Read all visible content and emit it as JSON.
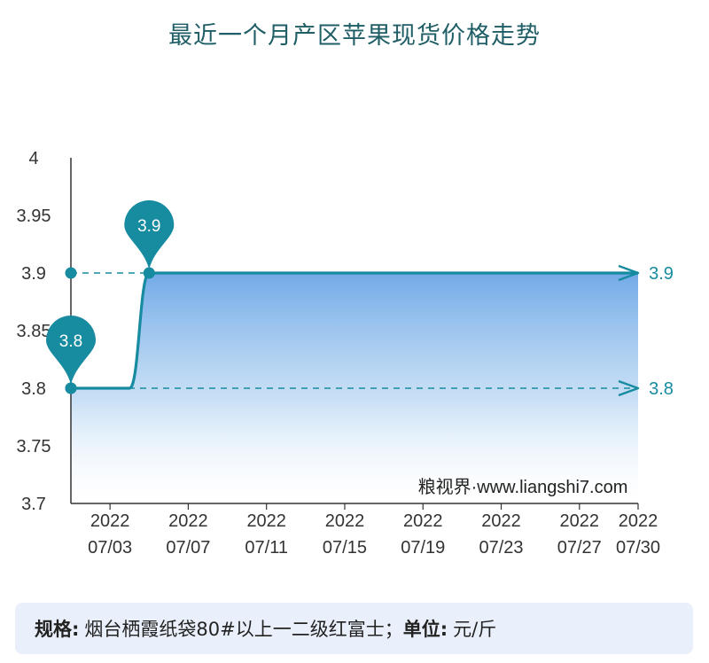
{
  "chart_data": {
    "type": "line",
    "title": "最近一个月产区苹果现货价格走势",
    "x": [
      "2022-07-01",
      "2022-07-02",
      "2022-07-03",
      "2022-07-04",
      "2022-07-05",
      "2022-07-06",
      "2022-07-07",
      "2022-07-08",
      "2022-07-09",
      "2022-07-10",
      "2022-07-11",
      "2022-07-12",
      "2022-07-13",
      "2022-07-14",
      "2022-07-15",
      "2022-07-16",
      "2022-07-17",
      "2022-07-18",
      "2022-07-19",
      "2022-07-20",
      "2022-07-21",
      "2022-07-22",
      "2022-07-23",
      "2022-07-24",
      "2022-07-25",
      "2022-07-26",
      "2022-07-27",
      "2022-07-28",
      "2022-07-29",
      "2022-07-30"
    ],
    "series": [
      {
        "values": [
          3.8,
          3.8,
          3.8,
          3.8,
          3.9,
          3.9,
          3.9,
          3.9,
          3.9,
          3.9,
          3.9,
          3.9,
          3.9,
          3.9,
          3.9,
          3.9,
          3.9,
          3.9,
          3.9,
          3.9,
          3.9,
          3.9,
          3.9,
          3.9,
          3.9,
          3.9,
          3.9,
          3.9,
          3.9,
          3.9
        ]
      }
    ],
    "ylim": [
      3.7,
      4
    ],
    "yticks": [
      "3.7",
      "3.75",
      "3.8",
      "3.85",
      "3.9",
      "3.95",
      "4"
    ],
    "xticks": [
      {
        "date": "2022-07-03",
        "year": "2022",
        "md": "07/03"
      },
      {
        "date": "2022-07-07",
        "year": "2022",
        "md": "07/07"
      },
      {
        "date": "2022-07-11",
        "year": "2022",
        "md": "07/11"
      },
      {
        "date": "2022-07-15",
        "year": "2022",
        "md": "07/15"
      },
      {
        "date": "2022-07-19",
        "year": "2022",
        "md": "07/19"
      },
      {
        "date": "2022-07-23",
        "year": "2022",
        "md": "07/23"
      },
      {
        "date": "2022-07-27",
        "year": "2022",
        "md": "07/27"
      },
      {
        "date": "2022-07-30",
        "year": "2022",
        "md": "07/30"
      }
    ],
    "markers": [
      {
        "date": "2022-07-01",
        "value": 3.8,
        "label": "3.8"
      },
      {
        "date": "2022-07-05",
        "value": 3.9,
        "label": "3.9"
      }
    ],
    "end_labels": [
      {
        "value": 3.9,
        "label": "3.9"
      },
      {
        "value": 3.8,
        "label": "3.8"
      }
    ],
    "watermark": "粮视界·www.liangshi7.com",
    "colors": {
      "line": "#178ba0",
      "pin": "#178ba0",
      "area": "#6aa5e6",
      "axis_label": "#178ba0"
    },
    "grid": false
  },
  "footer": {
    "spec_label": "规格:",
    "spec_value": "烟台栖霞纸袋80#以上一二级红富士；",
    "unit_label": "单位:",
    "unit_value": "元/斤"
  }
}
